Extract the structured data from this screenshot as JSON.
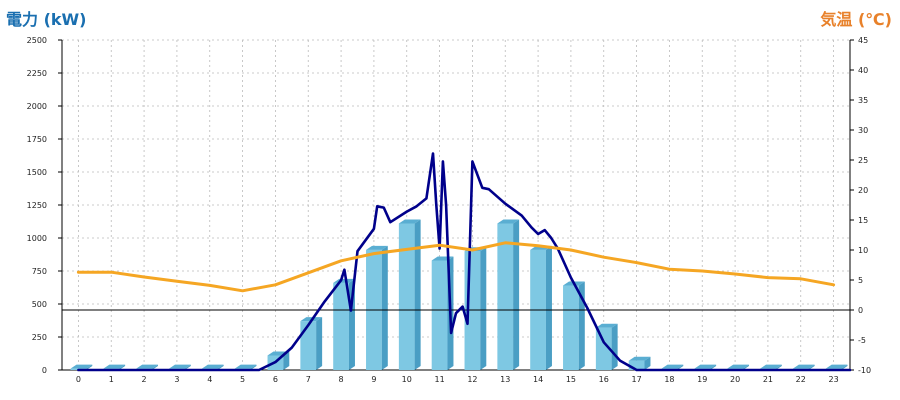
{
  "chart_data": {
    "type": "bar",
    "left_axis_title": "電力 (kW)",
    "right_axis_title": "気温 (℃)",
    "categories": [
      "0",
      "1",
      "2",
      "3",
      "4",
      "5",
      "6",
      "7",
      "8",
      "9",
      "10",
      "11",
      "12",
      "13",
      "14",
      "15",
      "16",
      "17",
      "18",
      "19",
      "20",
      "21",
      "22",
      "23"
    ],
    "series": [
      {
        "kind": "bar",
        "axis": "left",
        "color": "#7ec8e3",
        "values": [
          10,
          10,
          10,
          10,
          10,
          10,
          110,
          370,
          660,
          910,
          1110,
          830,
          900,
          1110,
          910,
          640,
          320,
          70,
          10,
          10,
          10,
          10,
          10,
          10
        ]
      },
      {
        "kind": "line",
        "axis": "left",
        "color": "#00008b",
        "x": [
          0,
          5.5,
          6,
          6.5,
          7,
          7.5,
          8,
          8.1,
          8.3,
          8.5,
          9,
          9.1,
          9.3,
          9.5,
          10,
          10.3,
          10.6,
          10.8,
          10.9,
          11,
          11.1,
          11.2,
          11.35,
          11.5,
          11.7,
          11.85,
          12,
          12.3,
          12.5,
          13,
          13.5,
          13.8,
          14,
          14.2,
          14.4,
          14.6,
          15,
          15.5,
          16,
          16.5,
          17,
          17.3,
          18,
          23.5
        ],
        "values": [
          0,
          0,
          60,
          170,
          340,
          520,
          680,
          760,
          450,
          900,
          1070,
          1240,
          1230,
          1120,
          1200,
          1240,
          1300,
          1640,
          1250,
          920,
          1580,
          1250,
          280,
          430,
          480,
          350,
          1580,
          1380,
          1370,
          1260,
          1170,
          1080,
          1030,
          1060,
          1000,
          920,
          700,
          470,
          210,
          70,
          0,
          0,
          0,
          0
        ]
      },
      {
        "kind": "line",
        "axis": "right",
        "color": "#f5a623",
        "x": [
          0,
          1,
          2,
          3,
          4,
          5,
          6,
          7,
          8,
          9,
          10,
          11,
          12,
          13,
          14,
          15,
          16,
          17,
          18,
          19,
          20,
          21,
          22,
          23
        ],
        "values": [
          6.3,
          6.3,
          5.5,
          4.8,
          4.1,
          3.2,
          4.2,
          6.2,
          8.2,
          9.4,
          10.1,
          10.8,
          10.0,
          11.2,
          10.7,
          10.0,
          8.8,
          7.9,
          6.8,
          6.5,
          6.0,
          5.4,
          5.2,
          4.2
        ]
      }
    ],
    "left_ylim": [
      0,
      2500
    ],
    "left_ticks": [
      0,
      250,
      500,
      750,
      1000,
      1250,
      1500,
      1750,
      2000,
      2250,
      2500
    ],
    "right_ylim": [
      -10,
      45
    ],
    "right_ticks": [
      -10,
      -5,
      0,
      5,
      10,
      15,
      20,
      25,
      30,
      35,
      40,
      45
    ],
    "grid": true
  }
}
